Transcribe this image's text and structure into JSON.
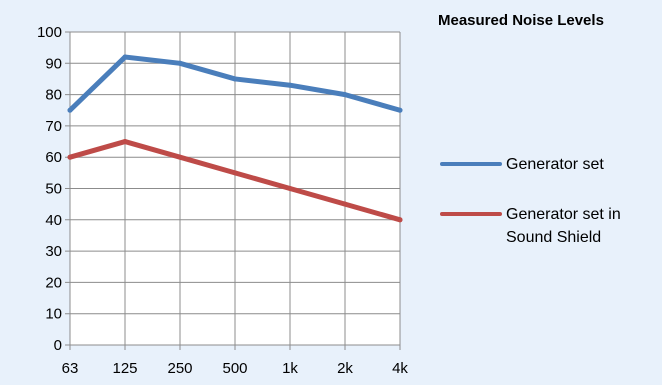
{
  "chart_data": {
    "type": "line",
    "title": "Measured Noise Levels",
    "categories": [
      "63",
      "125",
      "250",
      "500",
      "1k",
      "2k",
      "4k"
    ],
    "y_ticks": [
      "0",
      "10",
      "20",
      "30",
      "40",
      "50",
      "60",
      "70",
      "80",
      "90",
      "100"
    ],
    "ylim": [
      0,
      100
    ],
    "grid": true,
    "legend_position": "right",
    "series": [
      {
        "name": "Generator set",
        "color": "#4a7ebb",
        "values": [
          75,
          92,
          90,
          85,
          83,
          80,
          75
        ]
      },
      {
        "name": "Generator set in Sound Shield",
        "color": "#be4b48",
        "values": [
          60,
          65,
          60,
          55,
          50,
          45,
          40
        ]
      }
    ]
  }
}
